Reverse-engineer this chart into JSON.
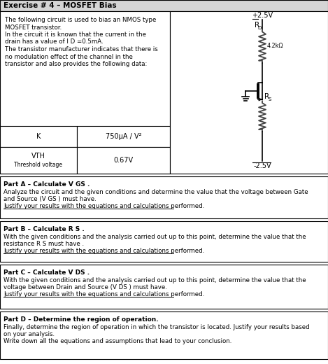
{
  "title": "Exercise # 4 – MOSFET Bias",
  "bg_color": "#ffffff",
  "intro_text_lines": [
    "The following circuit is used to bias an NMOS type",
    "MOSFET transistor.",
    "In the circuit it is known that the current in the",
    "drain has a value of I D =0.5mA.",
    "The transistor manufacturer indicates that there is",
    "no modulation effect of the channel in the",
    "transistor and also provides the following data:"
  ],
  "k_value": "750μA / V²",
  "vth_label1": "VTH",
  "vth_label2": "Threshold voltage",
  "vth_value": "0.67V",
  "parts": [
    {
      "title": "Part A – Calculate V GS .",
      "lines": [
        "Analyze the circuit and the given conditions and determine the value that the voltage between Gate",
        "and Source (V GS ) must have.",
        "Justify your results with the equations and calculations performed."
      ],
      "underline_last": true
    },
    {
      "title": "Part B – Calculate R S .",
      "lines": [
        "With the given conditions and the analysis carried out up to this point, determine the value that the",
        "resistance R S must have .",
        "Justify your results with the equations and calculations performed."
      ],
      "underline_last": true
    },
    {
      "title": "Part C – Calculate V DS .",
      "lines": [
        "With the given conditions and the analysis carried out up to this point, determine the value that the",
        "voltage between Drain and Source (V DS ) must have.",
        "Justify your results with the equations and calculations performed."
      ],
      "underline_last": true
    },
    {
      "title": "Part D – Determine the region of operation.",
      "lines": [
        "Finally, determine the region of operation in which the transistor is located. Justify your results based",
        "on your analysis.",
        "Write down all the equations and assumptions that lead to your conclusion."
      ],
      "underline_last": false
    }
  ],
  "vplus": "+2.5V",
  "vminus": "-2.5V",
  "rd_value": "4.2kΩ"
}
